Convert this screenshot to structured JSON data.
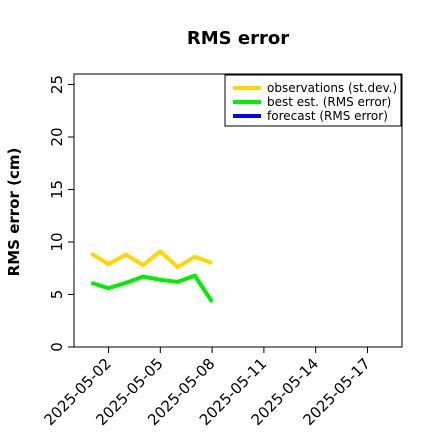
{
  "chart_data": {
    "type": "line",
    "title": "RMS error",
    "ylabel": "RMS error (cm)",
    "xlabel": "",
    "ylim": [
      0,
      26
    ],
    "xlim": [
      "2025-04-30",
      "2025-05-19"
    ],
    "yticks": [
      0,
      5,
      10,
      15,
      20,
      25
    ],
    "xticks": [
      "2025-05-02",
      "2025-05-05",
      "2025-05-08",
      "2025-05-11",
      "2025-05-14",
      "2025-05-17"
    ],
    "highlight_tick": "2025-05-08",
    "highlight_color": "#228B22",
    "grid": false,
    "legend_position": "top-right",
    "series": [
      {
        "name": "observations (st.dev.)",
        "color": "#FFD700",
        "x": [
          "2025-05-01",
          "2025-05-02",
          "2025-05-03",
          "2025-05-04",
          "2025-05-05",
          "2025-05-06",
          "2025-05-07",
          "2025-05-08"
        ],
        "y": [
          8.9,
          7.9,
          8.8,
          7.8,
          9.1,
          7.6,
          8.6,
          8.0
        ]
      },
      {
        "name": "best est. (RMS error)",
        "color": "#00EE00",
        "x": [
          "2025-05-01",
          "2025-05-02",
          "2025-05-03",
          "2025-05-04",
          "2025-05-05",
          "2025-05-06",
          "2025-05-07",
          "2025-05-08"
        ],
        "y": [
          6.1,
          5.6,
          6.1,
          6.7,
          6.4,
          6.2,
          6.8,
          4.3
        ]
      },
      {
        "name": "forecast (RMS error)",
        "color": "#0000FF",
        "x": [],
        "y": []
      }
    ]
  }
}
